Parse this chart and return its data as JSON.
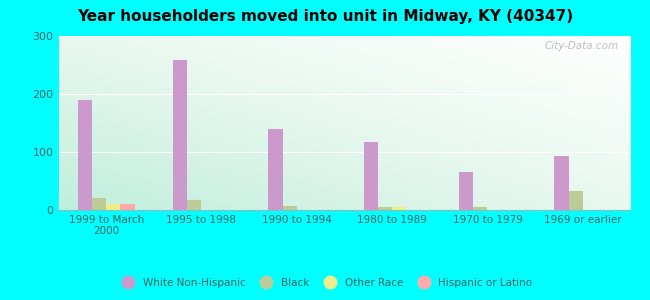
{
  "title": "Year householders moved into unit in Midway, KY (40347)",
  "categories": [
    "1999 to March\n2000",
    "1995 to 1998",
    "1990 to 1994",
    "1980 to 1989",
    "1970 to 1979",
    "1969 or earlier"
  ],
  "series": {
    "White Non-Hispanic": [
      190,
      258,
      140,
      118,
      65,
      93
    ],
    "Black": [
      20,
      18,
      7,
      5,
      6,
      33
    ],
    "Other Race": [
      11,
      0,
      0,
      5,
      0,
      0
    ],
    "Hispanic or Latino": [
      11,
      0,
      0,
      0,
      0,
      0
    ]
  },
  "colors": {
    "White Non-Hispanic": "#cc99cc",
    "Black": "#bbcc99",
    "Other Race": "#eeee88",
    "Hispanic or Latino": "#ffaaaa"
  },
  "ylim": [
    0,
    300
  ],
  "yticks": [
    0,
    100,
    200,
    300
  ],
  "background_color": "#00ffff",
  "watermark": "City-Data.com",
  "bar_width": 0.15,
  "label_color": "#336666",
  "title_color": "#000000"
}
